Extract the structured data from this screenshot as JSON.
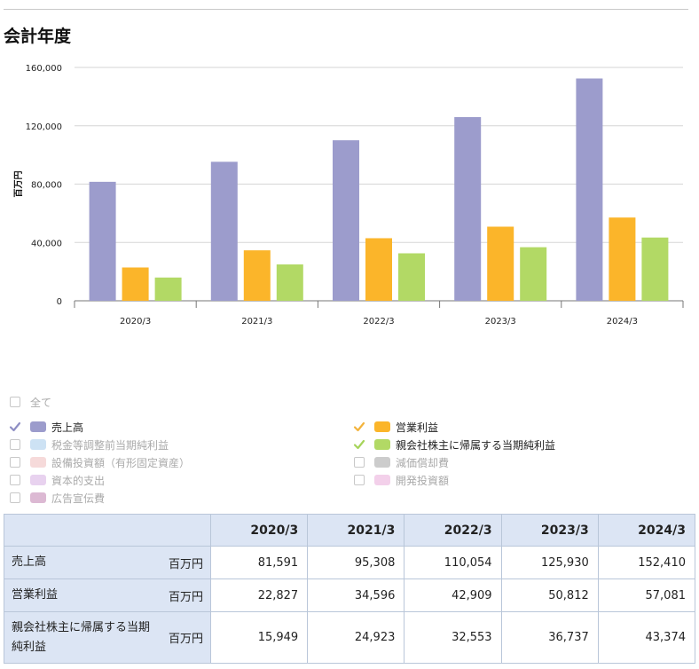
{
  "page": {
    "section_title": "会計年度"
  },
  "chart_data": {
    "type": "bar",
    "ylabel": "百万円",
    "ylim": [
      0,
      160000
    ],
    "yticks": [
      0,
      40000,
      80000,
      120000,
      160000
    ],
    "ytick_labels": [
      "0",
      "40,000",
      "80,000",
      "120,000",
      "160,000"
    ],
    "categories": [
      "2020/3",
      "2021/3",
      "2022/3",
      "2023/3",
      "2024/3"
    ],
    "grid": true,
    "series": [
      {
        "name": "売上高",
        "color": "#9c9ccc",
        "values": [
          81591,
          95308,
          110054,
          125930,
          152410
        ]
      },
      {
        "name": "営業利益",
        "color": "#fbb52a",
        "values": [
          22827,
          34596,
          42909,
          50812,
          57081
        ]
      },
      {
        "name": "親会社株主に帰属する当期純利益",
        "color": "#b2d965",
        "values": [
          15949,
          24923,
          32553,
          36737,
          43374
        ]
      }
    ]
  },
  "legend": {
    "all_label": "全て",
    "items": [
      {
        "label": "売上高",
        "checked": true,
        "color": "#9c9ccc",
        "check_color": "#8f8fc4"
      },
      {
        "label": "営業利益",
        "checked": true,
        "color": "#fbb52a",
        "check_color": "#f3b33c"
      },
      {
        "label": "税金等調整前当期純利益",
        "checked": false,
        "color": "#cde2f4"
      },
      {
        "label": "親会社株主に帰属する当期純利益",
        "checked": true,
        "color": "#b2d965",
        "check_color": "#a6d45a"
      },
      {
        "label": "設備投資額（有形固定資産）",
        "checked": false,
        "color": "#f6dada"
      },
      {
        "label": "減価償却費",
        "checked": false,
        "color": "#cccccc"
      },
      {
        "label": "資本的支出",
        "checked": false,
        "color": "#e8d2ef"
      },
      {
        "label": "開発投資額",
        "checked": false,
        "color": "#f3d0ea"
      },
      {
        "label": "広告宣伝費",
        "checked": false,
        "color": "#dcb9d3"
      }
    ]
  },
  "table": {
    "columns": [
      "2020/3",
      "2021/3",
      "2022/3",
      "2023/3",
      "2024/3"
    ],
    "rows": [
      {
        "label": "売上高",
        "unit": "百万円",
        "values": [
          "81,591",
          "95,308",
          "110,054",
          "125,930",
          "152,410"
        ]
      },
      {
        "label": "営業利益",
        "unit": "百万円",
        "values": [
          "22,827",
          "34,596",
          "42,909",
          "50,812",
          "57,081"
        ]
      },
      {
        "label": "親会社株主に帰属する当期純利益",
        "unit": "百万円",
        "values": [
          "15,949",
          "24,923",
          "32,553",
          "36,737",
          "43,374"
        ]
      }
    ]
  }
}
